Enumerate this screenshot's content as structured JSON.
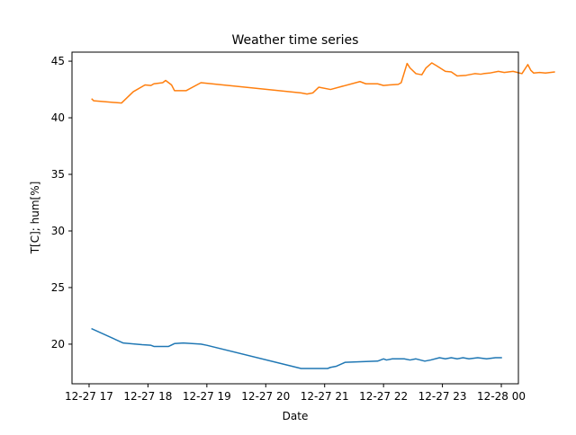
{
  "chart_data": {
    "type": "line",
    "title": "Weather time series",
    "xlabel": "Date",
    "ylabel": "T[C]; hum[%]",
    "x_unit": "hours (12-27 17:00 = 17)",
    "xlim": [
      16.71,
      24.29
    ],
    "ylim": [
      16.5,
      45.8
    ],
    "x_ticks": [
      {
        "value": 17,
        "label": "12-27 17"
      },
      {
        "value": 18,
        "label": "12-27 18"
      },
      {
        "value": 19,
        "label": "12-27 19"
      },
      {
        "value": 20,
        "label": "12-27 20"
      },
      {
        "value": 21,
        "label": "12-27 21"
      },
      {
        "value": 22,
        "label": "12-27 22"
      },
      {
        "value": 23,
        "label": "12-27 23"
      },
      {
        "value": 24,
        "label": "12-28 00"
      }
    ],
    "y_ticks": [
      20,
      25,
      30,
      35,
      40,
      45
    ],
    "grid": false,
    "series": [
      {
        "color": "#1f77b4",
        "points": [
          [
            17.05,
            21.35
          ],
          [
            17.58,
            20.1
          ],
          [
            17.9,
            19.95
          ],
          [
            18.05,
            19.9
          ],
          [
            18.1,
            19.8
          ],
          [
            18.35,
            19.8
          ],
          [
            18.45,
            20.05
          ],
          [
            18.6,
            20.1
          ],
          [
            18.9,
            20.0
          ],
          [
            19.0,
            19.9
          ],
          [
            20.6,
            17.85
          ],
          [
            21.05,
            17.85
          ],
          [
            21.1,
            17.95
          ],
          [
            21.2,
            18.05
          ],
          [
            21.35,
            18.4
          ],
          [
            21.9,
            18.5
          ],
          [
            21.95,
            18.6
          ],
          [
            22.0,
            18.7
          ],
          [
            22.05,
            18.6
          ],
          [
            22.15,
            18.7
          ],
          [
            22.35,
            18.7
          ],
          [
            22.45,
            18.6
          ],
          [
            22.55,
            18.7
          ],
          [
            22.7,
            18.5
          ],
          [
            22.8,
            18.6
          ],
          [
            22.95,
            18.8
          ],
          [
            23.05,
            18.7
          ],
          [
            23.15,
            18.8
          ],
          [
            23.25,
            18.7
          ],
          [
            23.35,
            18.8
          ],
          [
            23.45,
            18.7
          ],
          [
            23.6,
            18.8
          ],
          [
            23.75,
            18.7
          ],
          [
            23.9,
            18.8
          ],
          [
            24.0,
            18.8
          ]
        ]
      },
      {
        "color": "#ff7f0e",
        "points": [
          [
            17.05,
            41.65
          ],
          [
            17.08,
            41.5
          ],
          [
            17.55,
            41.3
          ],
          [
            17.75,
            42.3
          ],
          [
            17.95,
            42.9
          ],
          [
            18.05,
            42.85
          ],
          [
            18.1,
            43.0
          ],
          [
            18.25,
            43.1
          ],
          [
            18.3,
            43.3
          ],
          [
            18.4,
            42.9
          ],
          [
            18.45,
            42.4
          ],
          [
            18.65,
            42.4
          ],
          [
            18.9,
            43.1
          ],
          [
            20.6,
            42.2
          ],
          [
            20.7,
            42.1
          ],
          [
            20.8,
            42.2
          ],
          [
            20.9,
            42.7
          ],
          [
            21.1,
            42.5
          ],
          [
            21.6,
            43.2
          ],
          [
            21.7,
            43.0
          ],
          [
            21.9,
            43.0
          ],
          [
            22.0,
            42.85
          ],
          [
            22.1,
            42.9
          ],
          [
            22.25,
            42.95
          ],
          [
            22.3,
            43.1
          ],
          [
            22.4,
            44.8
          ],
          [
            22.45,
            44.4
          ],
          [
            22.55,
            43.9
          ],
          [
            22.65,
            43.8
          ],
          [
            22.72,
            44.4
          ],
          [
            22.82,
            44.85
          ],
          [
            22.9,
            44.6
          ],
          [
            23.05,
            44.1
          ],
          [
            23.15,
            44.05
          ],
          [
            23.25,
            43.7
          ],
          [
            23.4,
            43.75
          ],
          [
            23.55,
            43.9
          ],
          [
            23.65,
            43.85
          ],
          [
            23.7,
            43.9
          ],
          [
            23.8,
            43.95
          ],
          [
            23.95,
            44.1
          ],
          [
            24.05,
            44.0
          ],
          [
            24.2,
            44.1
          ],
          [
            24.35,
            43.9
          ],
          [
            24.45,
            44.7
          ],
          [
            24.5,
            44.2
          ],
          [
            24.55,
            43.95
          ],
          [
            24.65,
            44.0
          ],
          [
            24.75,
            43.95
          ],
          [
            24.9,
            44.05
          ]
        ]
      }
    ]
  }
}
